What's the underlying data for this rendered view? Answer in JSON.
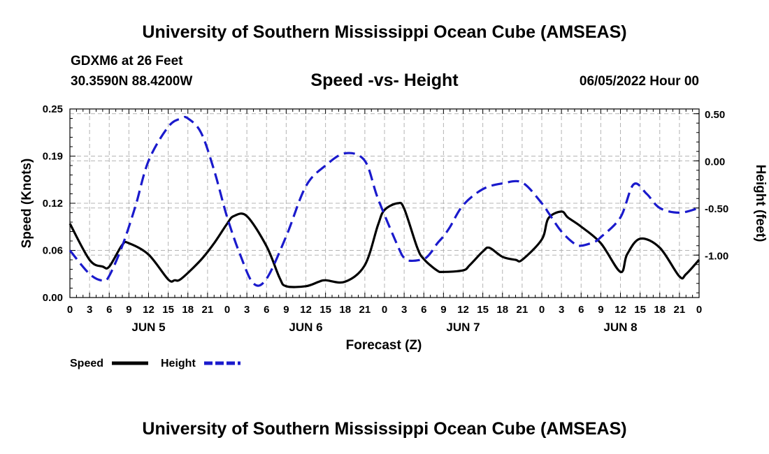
{
  "header": {
    "title": "University of Southern Mississippi Ocean Cube (AMSEAS)",
    "station": "GDXM6 at 26 Feet",
    "coords": "30.3590N  88.4200W",
    "subtitle": "Speed -vs- Height",
    "date": "06/05/2022 Hour 00"
  },
  "footer": {
    "title": "University of Southern Mississippi Ocean Cube (AMSEAS)"
  },
  "colors": {
    "speed": "#000000",
    "height": "#1a1acc",
    "grid": "#b4b4b4"
  },
  "chart_data": {
    "type": "line",
    "title": "Speed -vs- Height",
    "xlabel": "Forecast (Z)",
    "ylabel": "Speed (Knots)",
    "y2label": "Height (feet)",
    "xlim": [
      0,
      96
    ],
    "ylim": [
      0,
      0.25
    ],
    "y2lim": [
      -1.45,
      0.55
    ],
    "y_ticks": [
      0,
      0.0625,
      0.125,
      0.1875,
      0.25
    ],
    "y_tick_labels": [
      "0.00",
      "0.06",
      "0.12",
      "0.19",
      "0.25"
    ],
    "y2_ticks": [
      0.5,
      0,
      -0.5,
      -1
    ],
    "y2_tick_labels": [
      "0.50",
      "0.00",
      "-0.50",
      "-1.00"
    ],
    "x_tick_labels": [
      "0",
      "3",
      "6",
      "9",
      "12",
      "15",
      "18",
      "21",
      "0",
      "3",
      "6",
      "9",
      "12",
      "15",
      "18",
      "21",
      "0",
      "3",
      "6",
      "9",
      "12",
      "15",
      "18",
      "21",
      "0",
      "3",
      "6",
      "9",
      "12",
      "15",
      "18",
      "21",
      "0"
    ],
    "day_labels": [
      {
        "label": "JUN 5",
        "hour": 12
      },
      {
        "label": "JUN 6",
        "hour": 36
      },
      {
        "label": "JUN 7",
        "hour": 60
      },
      {
        "label": "JUN 8",
        "hour": 84
      }
    ],
    "legend": [
      {
        "name": "Speed",
        "style": "solid"
      },
      {
        "name": "Height",
        "style": "dashed"
      }
    ],
    "series": [
      {
        "name": "Speed",
        "axis": "left",
        "style": "solid",
        "x": [
          0,
          3,
          5,
          6,
          8,
          9,
          12,
          15,
          16,
          17,
          20,
          22,
          24,
          25,
          27,
          30,
          32,
          33,
          36,
          38,
          39,
          42,
          45,
          47,
          48,
          50,
          51,
          53,
          54,
          56,
          57,
          60,
          61,
          63,
          64,
          66,
          68,
          69,
          72,
          73,
          75,
          76,
          78,
          81,
          84,
          85,
          87,
          90,
          93,
          94,
          96
        ],
        "y": [
          0.098,
          0.05,
          0.041,
          0.041,
          0.07,
          0.072,
          0.057,
          0.024,
          0.023,
          0.025,
          0.05,
          0.072,
          0.098,
          0.108,
          0.108,
          0.068,
          0.026,
          0.015,
          0.015,
          0.021,
          0.023,
          0.021,
          0.043,
          0.096,
          0.116,
          0.125,
          0.118,
          0.066,
          0.051,
          0.036,
          0.034,
          0.036,
          0.043,
          0.061,
          0.066,
          0.054,
          0.05,
          0.05,
          0.077,
          0.105,
          0.114,
          0.106,
          0.094,
          0.072,
          0.034,
          0.057,
          0.078,
          0.066,
          0.028,
          0.031,
          0.05
        ]
      },
      {
        "name": "Height",
        "axis": "right",
        "style": "dashed",
        "x": [
          0,
          3,
          5,
          6,
          8,
          10,
          12,
          15,
          17,
          18,
          20,
          22,
          24,
          26,
          28,
          30,
          33,
          36,
          39,
          42,
          45,
          47,
          50,
          51,
          52,
          54,
          55,
          56,
          57,
          58,
          60,
          63,
          66,
          69,
          72,
          73,
          75,
          77,
          78,
          80,
          81,
          84,
          86,
          88,
          90,
          93,
          96
        ],
        "y": [
          -0.95,
          -1.2,
          -1.27,
          -1.22,
          -0.9,
          -0.48,
          0.0,
          0.36,
          0.45,
          0.45,
          0.3,
          -0.1,
          -0.6,
          -1.0,
          -1.3,
          -1.25,
          -0.8,
          -0.27,
          -0.05,
          0.08,
          0.0,
          -0.4,
          -0.9,
          -1.03,
          -1.06,
          -1.04,
          -0.98,
          -0.88,
          -0.8,
          -0.7,
          -0.47,
          -0.3,
          -0.24,
          -0.23,
          -0.45,
          -0.55,
          -0.75,
          -0.88,
          -0.9,
          -0.86,
          -0.81,
          -0.6,
          -0.25,
          -0.35,
          -0.5,
          -0.55,
          -0.5
        ]
      }
    ]
  }
}
